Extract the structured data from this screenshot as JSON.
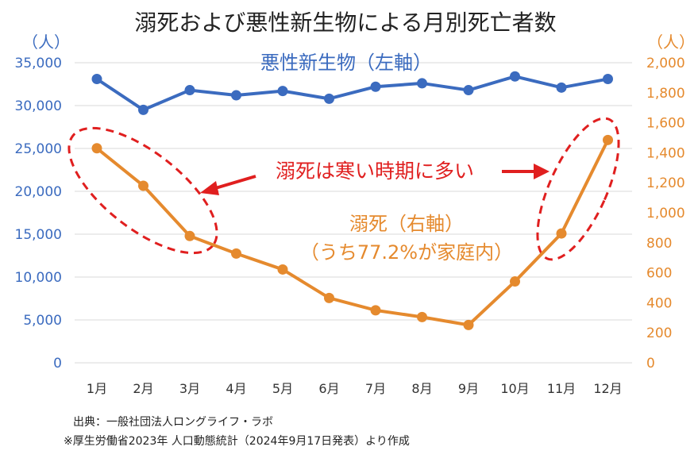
{
  "chart_data": {
    "type": "line",
    "title": "溺死および悪性新生物による月別死亡者数",
    "categories": [
      "1月",
      "2月",
      "3月",
      "4月",
      "5月",
      "6月",
      "7月",
      "8月",
      "9月",
      "10月",
      "11月",
      "12月"
    ],
    "y_left": {
      "unit": "（人）",
      "ylim": [
        0,
        35000
      ],
      "ticks": [
        "0",
        "5,000",
        "10,000",
        "15,000",
        "20,000",
        "25,000",
        "30,000",
        "35,000"
      ]
    },
    "y_right": {
      "unit": "（人）",
      "ylim": [
        0,
        2000
      ],
      "ticks": [
        "0",
        "200",
        "400",
        "600",
        "800",
        "1,000",
        "1,200",
        "1,400",
        "1,600",
        "1,800",
        "2,000"
      ]
    },
    "series": [
      {
        "name": "悪性新生物（左軸）",
        "axis": "left",
        "color": "#3b6bbf",
        "values": [
          33100,
          29500,
          31800,
          31200,
          31700,
          30800,
          32200,
          32600,
          31800,
          33400,
          32100,
          33100
        ]
      },
      {
        "name": "溺死（右軸）",
        "sub_label": "（うち77.2%が家庭内）",
        "axis": "right",
        "color": "#e58a2e",
        "values": [
          1430,
          1180,
          845,
          728,
          622,
          432,
          350,
          305,
          252,
          542,
          862,
          1485
        ]
      }
    ],
    "annotation": "溺死は寒い時期に多い",
    "grid": true,
    "footnotes": [
      "出典：一般社団法人ロングライフ・ラボ",
      "※厚生労働省2023年 人口動態統計（2024年9月17日発表）より作成"
    ]
  }
}
